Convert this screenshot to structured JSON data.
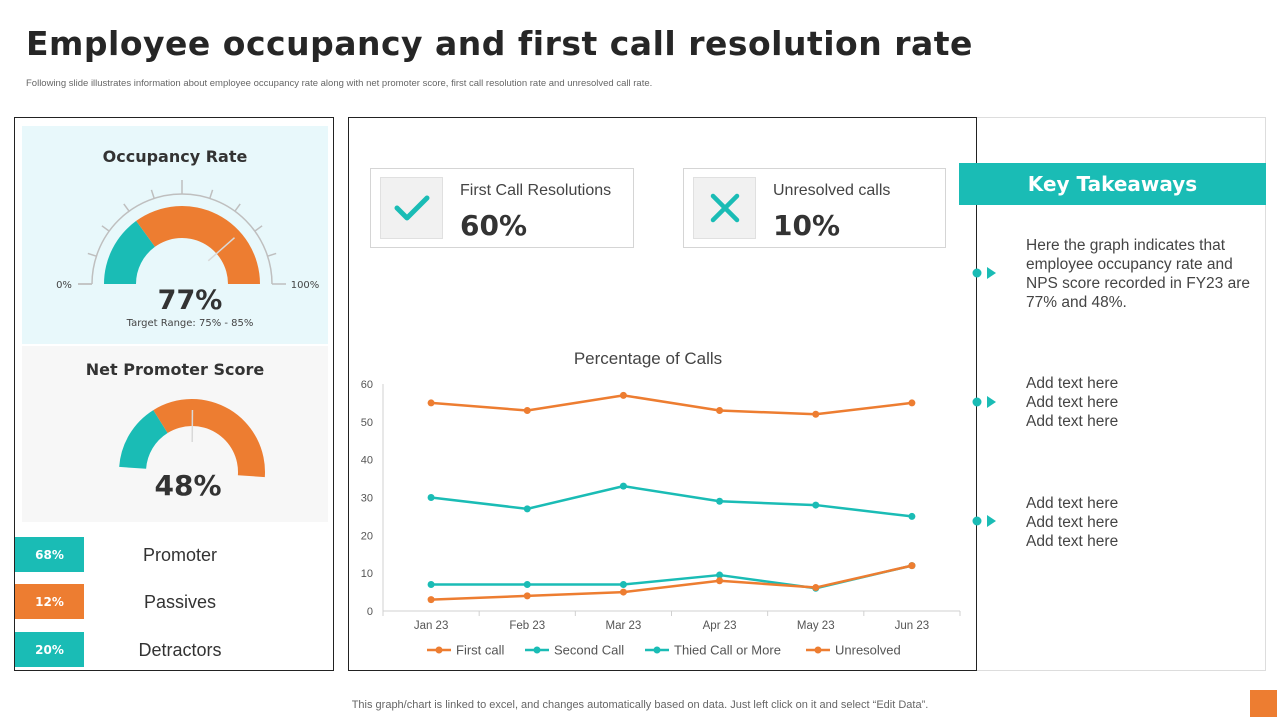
{
  "title": "Employee occupancy and first call resolution rate",
  "subtitle": "Following slide illustrates information about employee occupancy rate  along with net promoter score, first call resolution rate and unresolved call rate.",
  "colors": {
    "teal": "#1abcb5",
    "orange": "#ed7d31",
    "gray_arc": "#bfbfbf"
  },
  "occupancy": {
    "title": "Occupancy Rate",
    "value": "77%",
    "fraction": 0.77,
    "min_label": "0%",
    "max_label": "100%",
    "target": "Target Range: 75% - 85%"
  },
  "nps": {
    "title": "Net Promoter Score",
    "value": "48%",
    "fraction": 0.48
  },
  "nps_breakdown": [
    {
      "badge": "68%",
      "label": "Promoter",
      "color": "#1abcb5"
    },
    {
      "badge": "12%",
      "label": "Passives",
      "color": "#ed7d31"
    },
    {
      "badge": "20%",
      "label": "Detractors",
      "color": "#1abcb5"
    }
  ],
  "kpis": [
    {
      "label": "First Call Resolutions",
      "value": "60%",
      "icon": "check-icon"
    },
    {
      "label": "Unresolved calls",
      "value": "10%",
      "icon": "close-icon"
    }
  ],
  "takeaways": {
    "header": "Key Takeaways",
    "items": [
      "Here the graph indicates that employee occupancy rate and NPS score recorded in FY23 are 77% and 48%.",
      "Add text here\nAdd text here\nAdd text here",
      "Add text here\nAdd text here\nAdd text here"
    ]
  },
  "footer": "This graph/chart is linked to excel,  and changes automatically based on data. Just left click on it and select “Edit Data”.",
  "chart_data": {
    "type": "line",
    "title": "Percentage of Calls",
    "categories": [
      "Jan 23",
      "Feb 23",
      "Mar 23",
      "Apr 23",
      "May 23",
      "Jun 23"
    ],
    "ylim": [
      0,
      60
    ],
    "yticks": [
      0,
      10,
      20,
      30,
      40,
      50,
      60
    ],
    "grid": false,
    "legend_position": "bottom",
    "series": [
      {
        "name": "First call",
        "color": "#ed7d31",
        "values": [
          55,
          53,
          57,
          53,
          52,
          55
        ]
      },
      {
        "name": "Second Call",
        "color": "#1abcb5",
        "values": [
          30,
          27,
          33,
          29,
          28,
          25
        ]
      },
      {
        "name": "Thied Call or More",
        "color": "#1abcb5",
        "values": [
          7,
          7,
          7,
          9.5,
          6,
          12
        ]
      },
      {
        "name": "Unresolved",
        "color": "#ed7d31",
        "values": [
          3,
          4,
          5,
          8,
          6.2,
          12
        ]
      }
    ]
  }
}
